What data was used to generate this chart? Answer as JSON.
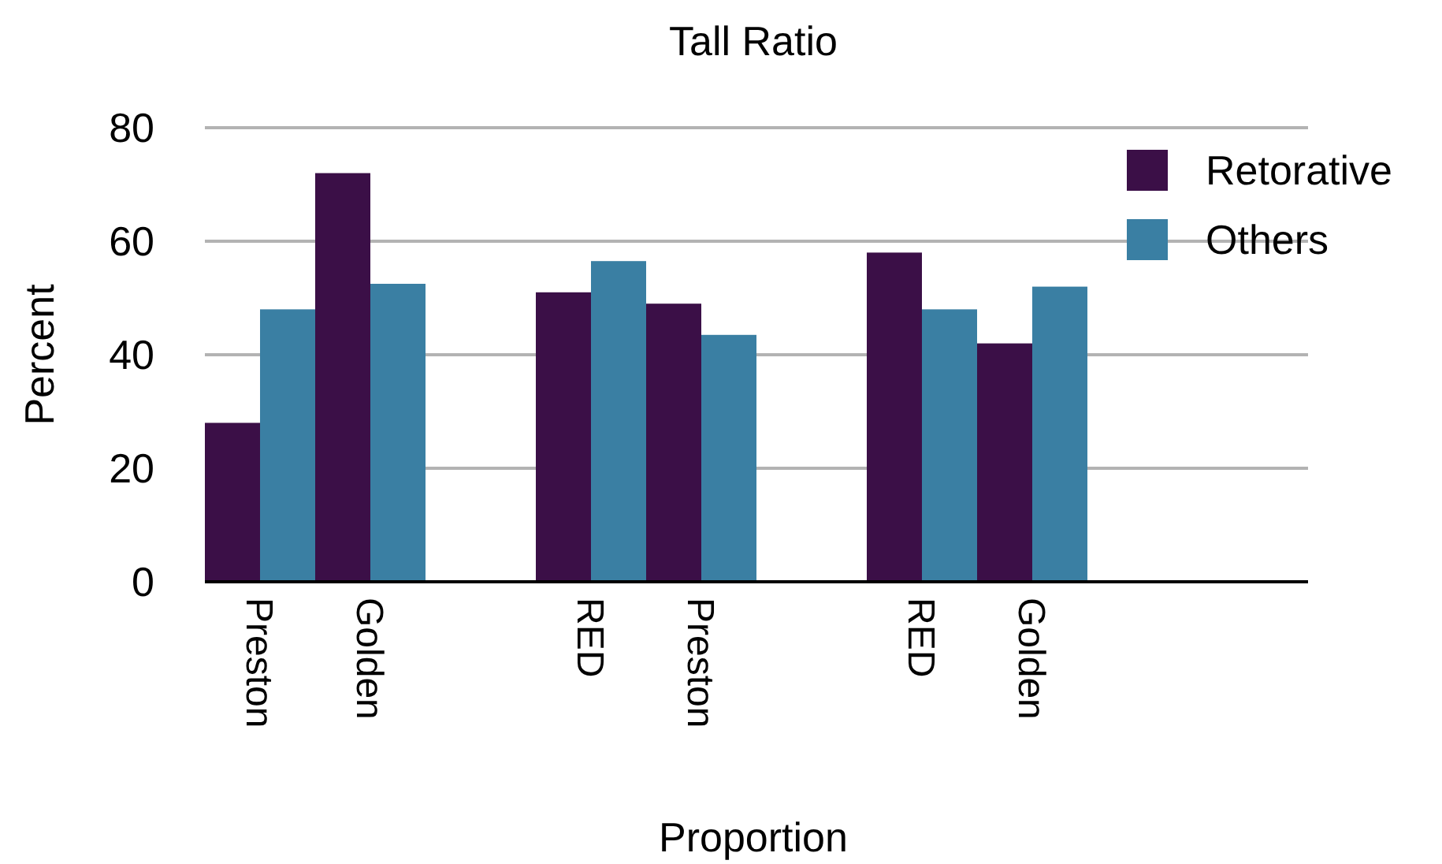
{
  "chart_data": {
    "type": "bar",
    "title": "Tall Ratio",
    "xlabel": "Proportion",
    "ylabel": "Percent",
    "categories": [
      "Preston",
      "Golden",
      null,
      "RED",
      "Preston",
      null,
      "RED",
      "Golden",
      null,
      null
    ],
    "series": [
      {
        "name": "Retorative",
        "color": "#3b0f47",
        "values": [
          28,
          72,
          null,
          51,
          49,
          null,
          58,
          42,
          null,
          null
        ]
      },
      {
        "name": "Others",
        "color": "#3a7fa3",
        "values": [
          48,
          52.5,
          null,
          56.5,
          43.5,
          null,
          48,
          52,
          null,
          null
        ]
      }
    ],
    "ylim": [
      0,
      80
    ],
    "yticks": [
      0,
      20,
      40,
      60,
      80
    ],
    "grid": "y",
    "legend": "top right"
  }
}
